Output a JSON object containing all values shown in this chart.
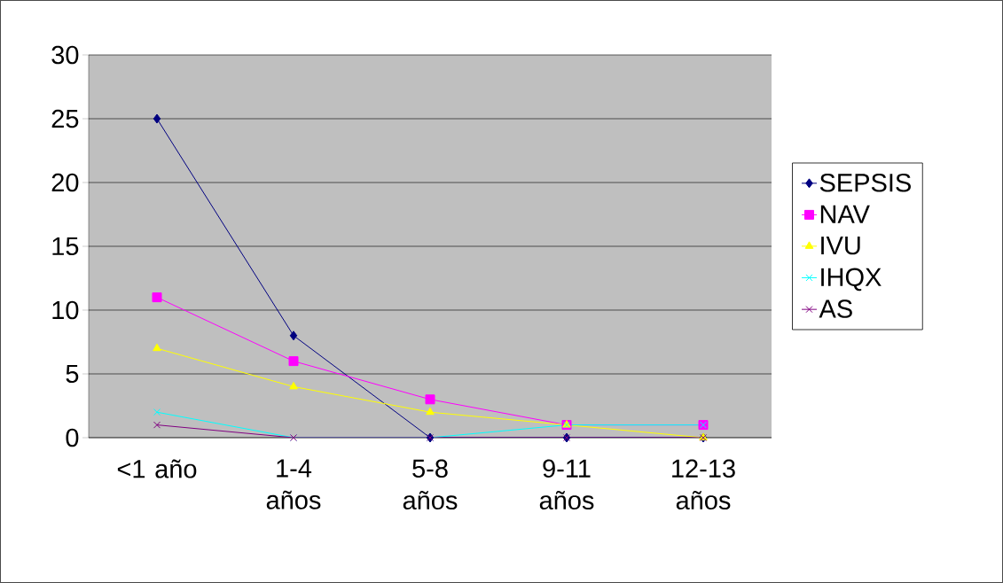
{
  "chart_data": {
    "type": "line",
    "categories": [
      "<1 año",
      "1-4 años",
      "5-8 años",
      "9-11 años",
      "12-13 años"
    ],
    "series": [
      {
        "name": "SEPSIS",
        "color": "#000080",
        "marker": "diamond",
        "values": [
          25,
          8,
          0,
          0,
          0
        ]
      },
      {
        "name": "NAV",
        "color": "#FF00FF",
        "marker": "square",
        "values": [
          11,
          6,
          3,
          1,
          1
        ]
      },
      {
        "name": "IVU",
        "color": "#FFFF00",
        "marker": "triangle",
        "values": [
          7,
          4,
          2,
          1,
          0
        ]
      },
      {
        "name": "IHQX",
        "color": "#00FFFF",
        "marker": "cross",
        "values": [
          2,
          0,
          0,
          1,
          1
        ]
      },
      {
        "name": "AS",
        "color": "#800080",
        "marker": "cross",
        "values": [
          1,
          0,
          0,
          0,
          0
        ]
      }
    ],
    "ylim": [
      0,
      30
    ],
    "yticks": [
      0,
      5,
      10,
      15,
      20,
      25,
      30
    ],
    "grid": "y",
    "legend": "right"
  }
}
